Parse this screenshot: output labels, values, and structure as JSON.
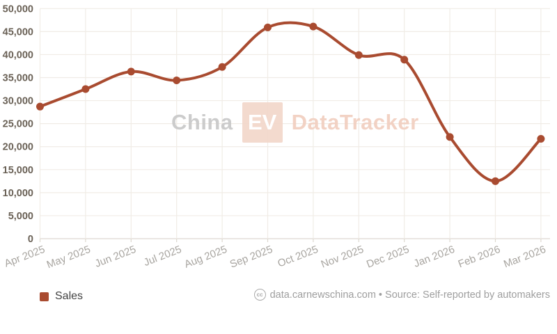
{
  "chart_data": {
    "type": "line",
    "title": "",
    "xlabel": "",
    "ylabel": "",
    "categories": [
      "Apr 2025",
      "May 2025",
      "Jun 2025",
      "Jul 2025",
      "Aug 2025",
      "Sep 2025",
      "Oct 2025",
      "Nov 2025",
      "Dec 2025",
      "Jan 2026",
      "Feb 2026",
      "Mar 2026"
    ],
    "series": [
      {
        "name": "Sales",
        "values": [
          28700,
          32500,
          36300,
          34400,
          37300,
          45900,
          46100,
          39900,
          38900,
          22100,
          12500,
          21700
        ]
      }
    ],
    "ylim": [
      0,
      50000
    ],
    "ytick_step": 5000,
    "ytick_labels": [
      "0",
      "5,000",
      "10,000",
      "15,000",
      "20,000",
      "25,000",
      "30,000",
      "35,000",
      "40,000",
      "45,000",
      "50,000"
    ],
    "grid": true,
    "legend_position": "bottom-left",
    "curve": "smooth-spline",
    "point_markers": true
  },
  "colors": {
    "series_line": "#a94b30",
    "y_label": "#6a6156",
    "x_label": "#a8a5a0",
    "gridline": "#f0ece6",
    "axis_line": "#ddd8d0",
    "background": "#ffffff"
  },
  "watermark": {
    "part1": "China",
    "part2": "EV",
    "part3": "DataTracker",
    "china_color": "#c8c8c8",
    "badge_bg_color": "#f3d7ca",
    "badge_text_color": "#ffffff",
    "tracker_color": "#f1cfc0"
  },
  "legend": {
    "label": "Sales",
    "swatch_color": "#a94b30"
  },
  "footer": {
    "cc_icon_label": "cc",
    "text": "data.carnewschina.com • Source: Self-reported by automakers"
  }
}
